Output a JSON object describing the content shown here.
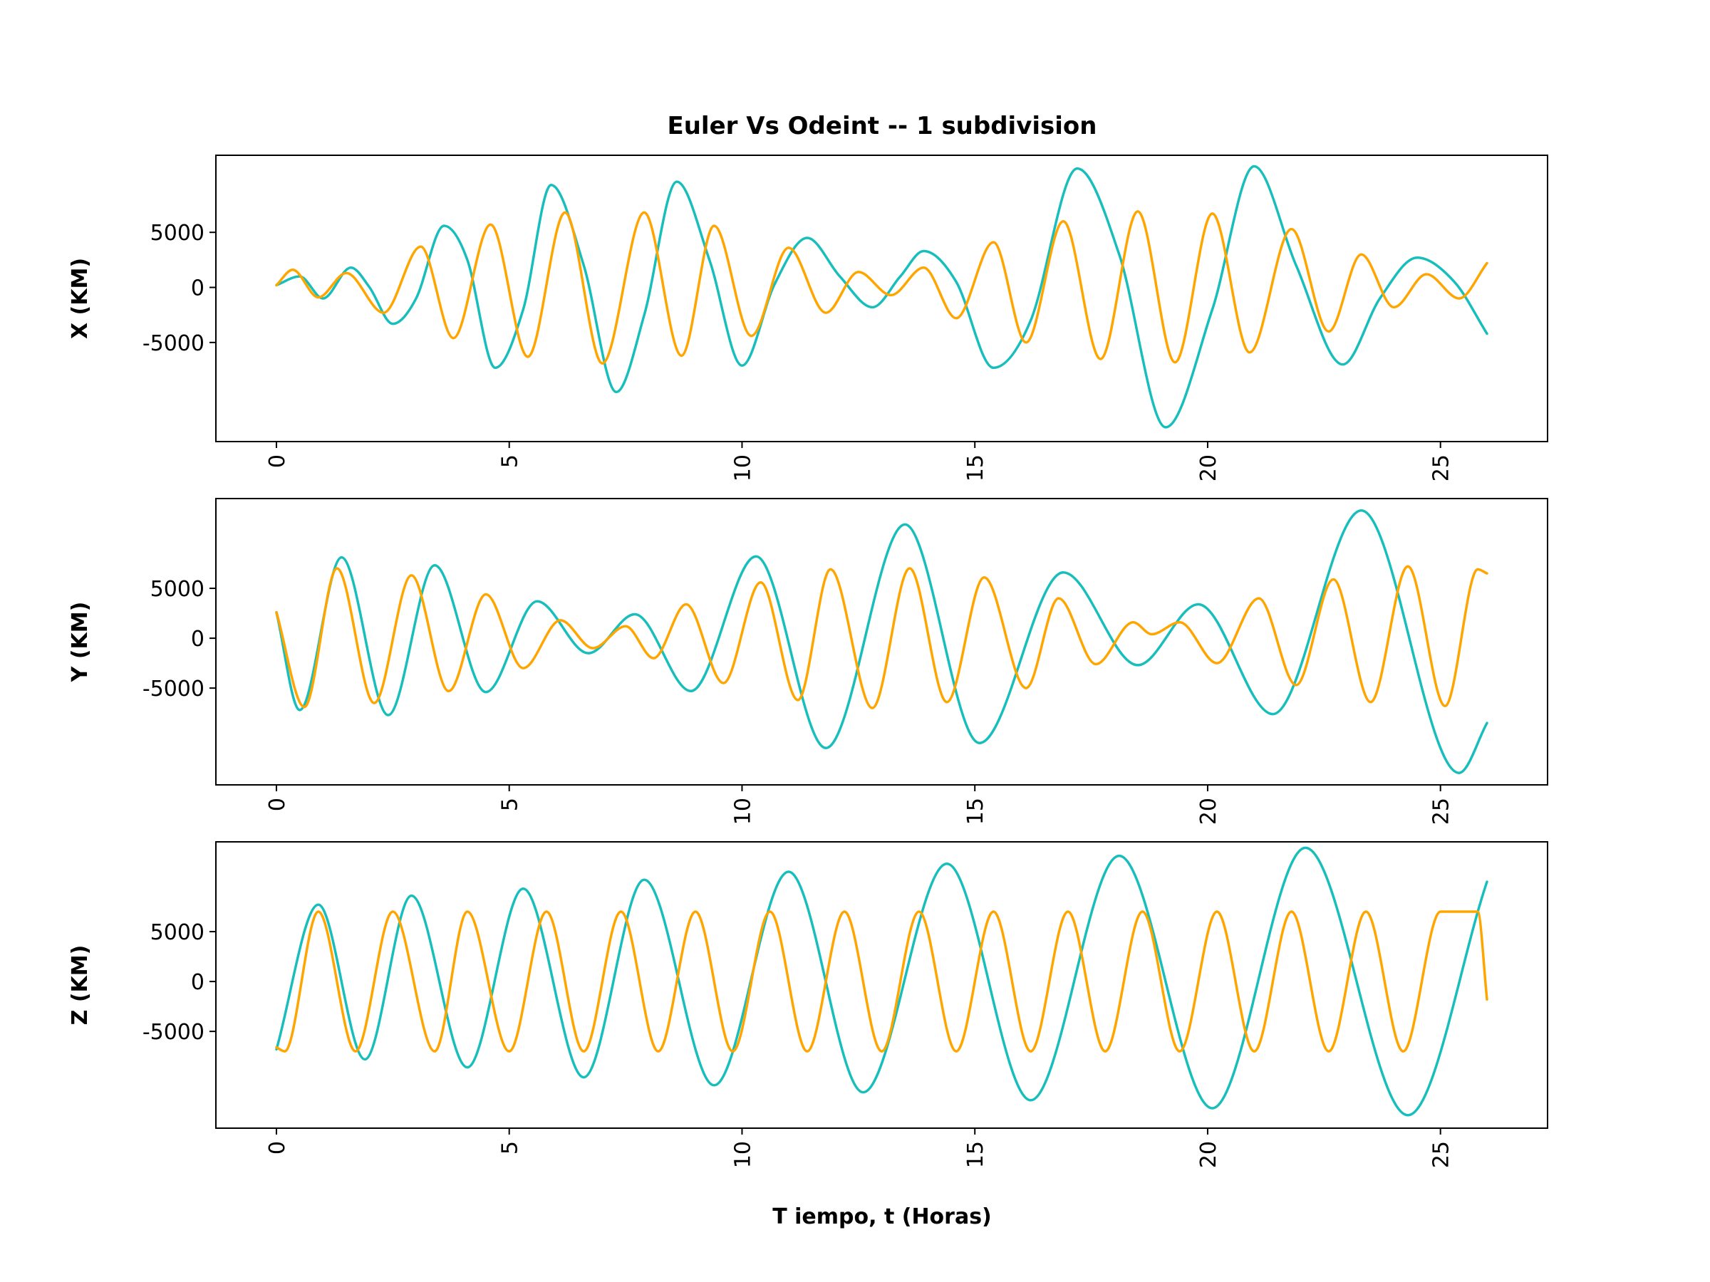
{
  "chart_data": {
    "type": "line",
    "title": "Euler Vs Odeint -- 1 subdivision",
    "xlabel": "T iempo, t (Horas)",
    "colors": {
      "euler": "#17bebb",
      "odeint": "#ffa500"
    },
    "x_ticks": [
      0,
      5,
      10,
      15,
      20,
      25
    ],
    "x_tick_labels": [
      "0",
      "5",
      "10",
      "15",
      "20",
      "25"
    ],
    "xlim": [
      -1.3,
      27.3
    ],
    "panels": [
      {
        "ylabel": "X (KM)",
        "ylim": [
          -14000,
          12000
        ],
        "y_ticks": [
          5000,
          0,
          -5000
        ],
        "y_tick_labels": [
          "5000",
          "0",
          "-5000"
        ],
        "series": [
          {
            "key": "euler",
            "x": [
              0,
              0.5,
              1,
              1.6,
              2,
              2.5,
              3,
              3.6,
              4.1,
              4.7,
              5.3,
              5.9,
              6.6,
              7.3,
              7.9,
              8.6,
              9.3,
              10,
              10.7,
              11.4,
              12.1,
              12.8,
              13.4,
              13.9,
              14.6,
              15.4,
              16.2,
              17.2,
              18.1,
              19.1,
              20.1,
              21,
              21.9,
              22.9,
              23.7,
              24.5,
              25.3,
              26
            ],
            "y": [
              200,
              1000,
              -1000,
              1800,
              0,
              -3300,
              -1000,
              5600,
              2500,
              -7300,
              -2000,
              9300,
              2000,
              -9500,
              -2500,
              9600,
              2500,
              -7100,
              300,
              4500,
              1000,
              -1800,
              1000,
              3300,
              500,
              -7300,
              -3000,
              10800,
              3000,
              -12700,
              -2000,
              11000,
              2000,
              -7000,
              -1000,
              2700,
              500,
              -4200
            ]
          },
          {
            "key": "odeint",
            "x": [
              0,
              0.35,
              0.9,
              1.5,
              2.3,
              3.1,
              3.8,
              4.6,
              5.4,
              6.2,
              7,
              7.9,
              8.7,
              9.4,
              10.2,
              11,
              11.8,
              12.5,
              13.2,
              13.9,
              14.6,
              15.4,
              16.1,
              16.9,
              17.7,
              18.5,
              19.3,
              20.1,
              20.9,
              21.8,
              22.6,
              23.3,
              24,
              24.7,
              25.4,
              26
            ],
            "y": [
              200,
              1600,
              -900,
              1300,
              -2300,
              3700,
              -4600,
              5700,
              -6300,
              6800,
              -6900,
              6800,
              -6200,
              5600,
              -4400,
              3600,
              -2300,
              1400,
              -700,
              1800,
              -2800,
              4100,
              -5000,
              6000,
              -6500,
              6900,
              -6800,
              6700,
              -5900,
              5300,
              -4000,
              3000,
              -1800,
              1200,
              -1000,
              2200
            ]
          }
        ]
      },
      {
        "ylabel": "Y (KM)",
        "ylim": [
          -14700,
          14000
        ],
        "y_ticks": [
          5000,
          0,
          -5000
        ],
        "y_tick_labels": [
          "5000",
          "0",
          "-5000"
        ],
        "series": [
          {
            "key": "euler",
            "x": [
              0,
              0.5,
              1.4,
              2.4,
              3.4,
              4.5,
              5.6,
              6.7,
              7.7,
              8.9,
              10.3,
              11.8,
              13.5,
              15.1,
              16.9,
              18.5,
              19.8,
              21.4,
              23.3,
              25.4,
              26
            ],
            "y": [
              2600,
              -7200,
              8100,
              -7700,
              7300,
              -5400,
              3700,
              -1500,
              2400,
              -5300,
              8200,
              -11000,
              11400,
              -10500,
              6600,
              -2700,
              3400,
              -7600,
              12800,
              -13500,
              -8500
            ]
          },
          {
            "key": "odeint",
            "x": [
              0,
              0.6,
              1.3,
              2.1,
              2.9,
              3.7,
              4.5,
              5.3,
              6.1,
              6.8,
              7.5,
              8.1,
              8.8,
              9.6,
              10.4,
              11.2,
              11.9,
              12.8,
              13.6,
              14.4,
              15.2,
              16.1,
              16.8,
              17.6,
              18.4,
              18.8,
              19.4,
              20.2,
              21.1,
              21.9,
              22.7,
              23.5,
              24.3,
              25.1,
              25.8,
              26
            ],
            "y": [
              2600,
              -6900,
              7000,
              -6500,
              6300,
              -5300,
              4400,
              -3000,
              1800,
              -1000,
              1200,
              -2000,
              3400,
              -4500,
              5600,
              -6200,
              6900,
              -7000,
              7000,
              -6400,
              6100,
              -5000,
              4000,
              -2600,
              1600,
              400,
              1600,
              -2500,
              4000,
              -4700,
              5900,
              -6400,
              7200,
              -6800,
              6900,
              6500
            ]
          }
        ]
      },
      {
        "ylabel": "Z (KM)",
        "ylim": [
          -14700,
          14000
        ],
        "y_ticks": [
          5000,
          0,
          -5000
        ],
        "y_tick_labels": [
          "5000",
          "0",
          "-5000"
        ],
        "series": [
          {
            "key": "euler",
            "x": [
              0,
              0.9,
              1.9,
              2.9,
              4.1,
              5.3,
              6.6,
              7.9,
              9.4,
              11,
              12.6,
              14.4,
              16.2,
              18.1,
              20.1,
              22.1,
              24.3,
              26
            ],
            "y": [
              -6800,
              7700,
              -7800,
              8600,
              -8600,
              9300,
              -9600,
              10200,
              -10400,
              11000,
              -11100,
              11800,
              -11900,
              12600,
              -12700,
              13400,
              -13400,
              10000
            ]
          },
          {
            "key": "odeint",
            "x": [
              0,
              0.18,
              0.9,
              1.7,
              2.5,
              3.4,
              4.1,
              5,
              5.8,
              6.6,
              7.4,
              8.2,
              9,
              9.8,
              10.6,
              11.4,
              12.2,
              13,
              13.8,
              14.6,
              15.4,
              16.2,
              17,
              17.8,
              18.6,
              19.4,
              20.2,
              21,
              21.8,
              22.6,
              23.4,
              24.2,
              25,
              25.8,
              26
            ],
            "y": [
              -6600,
              -7000,
              7000,
              -7000,
              7000,
              -7000,
              7000,
              -7000,
              7000,
              -7000,
              7000,
              -7000,
              7000,
              -7000,
              7000,
              -7000,
              7000,
              -7000,
              7000,
              -7000,
              7000,
              -7000,
              7000,
              -7000,
              7000,
              -7000,
              7000,
              -7000,
              7000,
              -7000,
              7000,
              -7000,
              7000,
              7000,
              -1800
            ]
          }
        ]
      }
    ]
  }
}
